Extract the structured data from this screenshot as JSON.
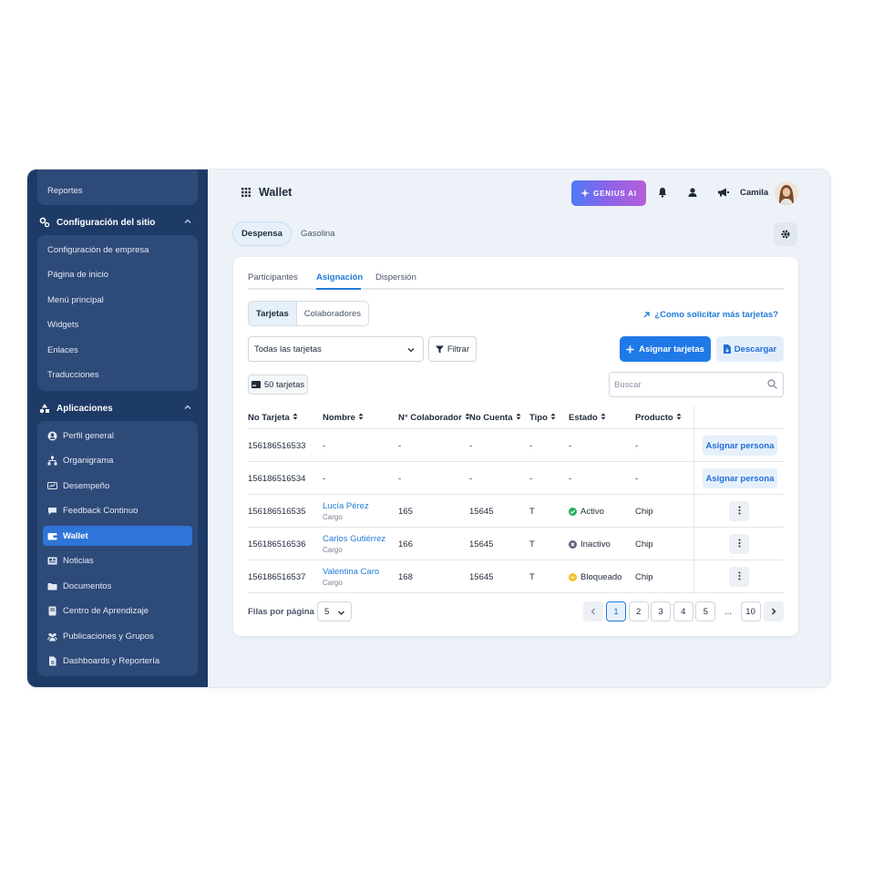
{
  "sidebar": {
    "reportes": "Reportes",
    "config_header": "Configuración del sitio",
    "config_items": [
      "Configuración de empresa",
      "Página de inicio",
      "Menú principal",
      "Widgets",
      "Enlaces",
      "Traducciones"
    ],
    "apps_header": "Aplicaciones",
    "apps_items": [
      {
        "label": "Perfil general",
        "icon": "user-circle-icon"
      },
      {
        "label": "Organigrama",
        "icon": "org-chart-icon"
      },
      {
        "label": "Desempeño",
        "icon": "performance-icon"
      },
      {
        "label": "Feedback Continuo",
        "icon": "chat-bubble-icon"
      },
      {
        "label": "Wallet",
        "icon": "wallet-icon"
      },
      {
        "label": "Noticias",
        "icon": "newspaper-icon"
      },
      {
        "label": "Documentos",
        "icon": "folder-icon"
      },
      {
        "label": "Centro de Aprendizaje",
        "icon": "book-icon"
      },
      {
        "label": "Publicaciones y Grupos",
        "icon": "group-icon"
      },
      {
        "label": "Dashboards y Reportería",
        "icon": "report-file-icon"
      }
    ]
  },
  "header": {
    "title": "Wallet",
    "genius_label": "GENIUS AI",
    "user_name": "Camila"
  },
  "top_tabs": [
    "Despensa",
    "Gasolina"
  ],
  "sub_tabs": [
    "Participantes",
    "Asignación",
    "Dispersión"
  ],
  "segment": [
    "Tarjetas",
    "Colaboradores"
  ],
  "solicitar_link": "¿Como solicitar más tarjetas?",
  "filter_select": "Todas las tarjetas",
  "filter_button": "Filtrar",
  "assign_cards_button": "Asignar tarjetas",
  "download_button": "Descargar",
  "count_badge": "50 tarjetas",
  "search_placeholder": "Buscar",
  "table": {
    "headers": [
      "No Tarjeta",
      "Nombre",
      "N° Colaborador",
      "No Cuenta",
      "Tipo",
      "Estado",
      "Producto"
    ],
    "assign_person_label": "Asignar persona",
    "rows": [
      {
        "tarjeta": "156186516533",
        "nombre": "-",
        "cargo": "",
        "colaborador": "-",
        "cuenta": "-",
        "tipo": "-",
        "estado": "-",
        "producto": "-",
        "action": "assign"
      },
      {
        "tarjeta": "156186516534",
        "nombre": "-",
        "cargo": "",
        "colaborador": "-",
        "cuenta": "-",
        "tipo": "-",
        "estado": "-",
        "producto": "-",
        "action": "assign"
      },
      {
        "tarjeta": "156186516535",
        "nombre": "Lucía Pérez",
        "cargo": "Cargo",
        "colaborador": "165",
        "cuenta": "15645",
        "tipo": "T",
        "estado": "Activo",
        "status_color": "#22b15a",
        "producto": "Chip",
        "action": "menu"
      },
      {
        "tarjeta": "156186516536",
        "nombre": "Carlos Gutiérrez",
        "cargo": "Cargo",
        "colaborador": "166",
        "cuenta": "15645",
        "tipo": "T",
        "estado": "Inactivo",
        "status_color": "#5b6473",
        "producto": "Chip",
        "action": "menu"
      },
      {
        "tarjeta": "156186516537",
        "nombre": "Valentina Caro",
        "cargo": "Cargo",
        "colaborador": "168",
        "cuenta": "15645",
        "tipo": "T",
        "estado": "Bloqueado",
        "status_color": "#f2c12e",
        "producto": "Chip",
        "action": "menu"
      }
    ]
  },
  "pagination": {
    "rows_label": "Filas por página",
    "rows_value": "5",
    "pages": [
      "1",
      "2",
      "3",
      "4",
      "5",
      "...",
      "10"
    ],
    "current": "1"
  },
  "colors": {
    "accent": "#1f7ad8",
    "sidebar": "#1e3a66",
    "sidebar_group": "#2e4a78"
  }
}
